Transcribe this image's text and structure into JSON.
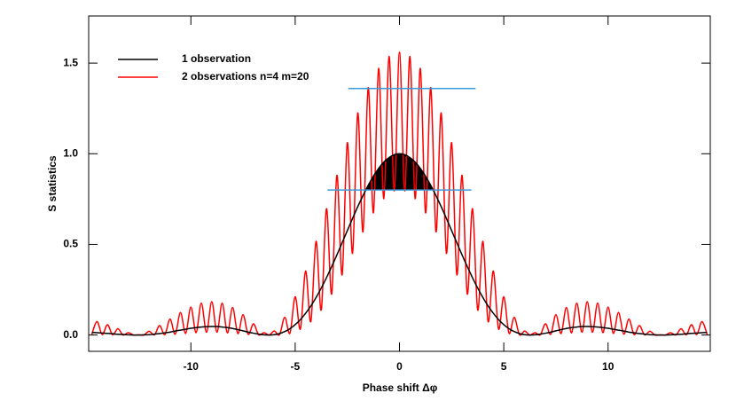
{
  "chart_data": {
    "type": "line",
    "xlabel": "Phase shift Δφ",
    "ylabel": "S statistics",
    "x": [
      -14.75,
      -14.5,
      -14.25,
      -14,
      -13.75,
      -13.5,
      -13.25,
      -13,
      -12.75,
      -12.5,
      -12.25,
      -12,
      -11.75,
      -11.5,
      -11.25,
      -11,
      -10.75,
      -10.5,
      -10.25,
      -10,
      -9.75,
      -9.5,
      -9.25,
      -9,
      -8.75,
      -8.5,
      -8.25,
      -8,
      -7.75,
      -7.5,
      -7.25,
      -7,
      -6.75,
      -6.5,
      -6.25,
      -6,
      -5.75,
      -5.5,
      -5.25,
      -5,
      -4.75,
      -4.5,
      -4.25,
      -4,
      -3.75,
      -3.5,
      -3.25,
      -3,
      -2.75,
      -2.5,
      -2.25,
      -2,
      -1.75,
      -1.5,
      -1.25,
      -1,
      -0.75,
      -0.5,
      -0.25,
      0,
      0.25,
      0.5,
      0.75,
      1,
      1.25,
      1.5,
      1.75,
      2,
      2.25,
      2.5,
      2.75,
      3,
      3.25,
      3.5,
      3.75,
      4,
      4.25,
      4.5,
      4.75,
      5,
      5.25,
      5.5,
      5.75,
      6,
      6.25,
      6.5,
      6.75,
      7,
      7.25,
      7.5,
      7.75,
      8,
      8.25,
      8.5,
      8.75,
      9,
      9.25,
      9.5,
      9.75,
      10,
      10.25,
      10.5,
      10.75,
      11,
      11.25,
      11.5,
      11.75,
      12,
      12.25,
      12.5,
      12.75,
      13,
      13.25,
      13.5,
      13.75,
      14,
      14.25,
      14.5,
      14.75
    ],
    "series": [
      {
        "name": "1 observation",
        "color": "#000000",
        "values": [
          0.014,
          0.013,
          0.011,
          0.009,
          0.007,
          0.004,
          0.003,
          0.001,
          0,
          0,
          0.001,
          0.002,
          0.005,
          0.008,
          0.012,
          0.016,
          0.022,
          0.027,
          0.032,
          0.037,
          0.041,
          0.044,
          0.046,
          0.047,
          0.047,
          0.044,
          0.041,
          0.036,
          0.03,
          0.023,
          0.016,
          0.01,
          0.005,
          0.001,
          0,
          0.002,
          0.008,
          0.019,
          0.035,
          0.057,
          0.085,
          0.12,
          0.16,
          0.207,
          0.259,
          0.316,
          0.378,
          0.442,
          0.509,
          0.576,
          0.643,
          0.708,
          0.769,
          0.826,
          0.876,
          0.919,
          0.954,
          0.979,
          0.995,
          1,
          0.995,
          0.979,
          0.954,
          0.919,
          0.876,
          0.826,
          0.769,
          0.708,
          0.643,
          0.576,
          0.509,
          0.442,
          0.378,
          0.316,
          0.259,
          0.207,
          0.16,
          0.12,
          0.085,
          0.057,
          0.035,
          0.019,
          0.008,
          0.002,
          0,
          0.001,
          0.005,
          0.01,
          0.016,
          0.023,
          0.03,
          0.036,
          0.041,
          0.044,
          0.047,
          0.047,
          0.046,
          0.044,
          0.041,
          0.037,
          0.032,
          0.027,
          0.022,
          0.016,
          0.012,
          0.008,
          0.005,
          0.002,
          0.001,
          0,
          0,
          0.001,
          0.003,
          0.004,
          0.007,
          0.009,
          0.011,
          0.013,
          0.014
        ]
      },
      {
        "name": "2 observations n=4 m=20",
        "color": "#ff0000",
        "values": [
          0.003,
          0.074,
          0.002,
          0.057,
          0.001,
          0.035,
          0,
          0.013,
          0,
          0.001,
          0,
          0.021,
          0.001,
          0.052,
          0.002,
          0.088,
          0.005,
          0.124,
          0.009,
          0.154,
          0.013,
          0.176,
          0.015,
          0.184,
          0.015,
          0.176,
          0.012,
          0.152,
          0.008,
          0.112,
          0.004,
          0.062,
          0.001,
          0.013,
          0,
          0.022,
          0.002,
          0.098,
          0.01,
          0.211,
          0.033,
          0.353,
          0.074,
          0.517,
          0.138,
          0.697,
          0.226,
          0.881,
          0.332,
          1.061,
          0.451,
          1.225,
          0.569,
          1.365,
          0.674,
          1.471,
          0.752,
          1.537,
          0.795,
          1.56,
          0.795,
          1.537,
          0.752,
          1.471,
          0.674,
          1.365,
          0.569,
          1.225,
          0.451,
          1.061,
          0.332,
          0.881,
          0.226,
          0.697,
          0.138,
          0.517,
          0.074,
          0.353,
          0.033,
          0.211,
          0.01,
          0.098,
          0.002,
          0.022,
          0,
          0.013,
          0.001,
          0.062,
          0.004,
          0.112,
          0.008,
          0.152,
          0.012,
          0.176,
          0.015,
          0.184,
          0.015,
          0.176,
          0.013,
          0.154,
          0.009,
          0.124,
          0.005,
          0.088,
          0.002,
          0.052,
          0.001,
          0.021,
          0,
          0.001,
          0,
          0.013,
          0,
          0.035,
          0.001,
          0.057,
          0.002,
          0.074,
          0.003
        ]
      }
    ],
    "hlines": [
      {
        "y": 0.8,
        "x": [
          -3.45,
          3.45
        ]
      },
      {
        "y": 1.36,
        "x": [
          -2.45,
          3.65
        ]
      }
    ],
    "hline_color": "#3a9ad9",
    "shade_color": "#000000",
    "xlim": [
      -14.9,
      14.9
    ],
    "xticks": [
      -10,
      -5,
      0,
      5,
      10
    ],
    "ylim": [
      -0.09,
      1.76
    ],
    "yticks": [
      {
        "value": 0,
        "label": "0.0"
      },
      0.5,
      {
        "value": 1,
        "label": "1.0"
      },
      1.5
    ],
    "legend": "upper left"
  }
}
